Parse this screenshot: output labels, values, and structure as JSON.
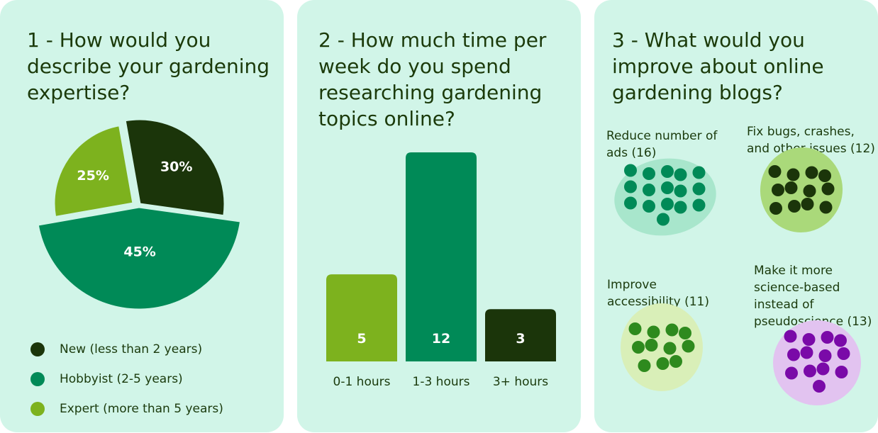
{
  "colors": {
    "card_bg": "#d1f5e8",
    "dark_green": "#1b350a",
    "mid_green": "#008a57",
    "light_green": "#7db21e",
    "purple": "#7a0aa8"
  },
  "cards": [
    {
      "title": "1 - How would you describe your gardening expertise?"
    },
    {
      "title": "2 - How much time per week do you spend researching gardening topics online?"
    },
    {
      "title": "3 - What would you improve about online gardening blogs?"
    }
  ],
  "chart_data": [
    {
      "type": "pie",
      "title": "1 - How would you describe your gardening expertise?",
      "slices": [
        {
          "name": "New (less than 2 years)",
          "value": 30,
          "label": "30%",
          "color": "#1b350a"
        },
        {
          "name": "Hobbyist (2-5 years)",
          "value": 45,
          "label": "45%",
          "color": "#008a57"
        },
        {
          "name": "Expert (more than 5 years)",
          "value": 25,
          "label": "25%",
          "color": "#7db21e"
        }
      ],
      "legend": [
        "New (less than 2 years)",
        "Hobbyist (2-5 years)",
        "Expert (more than 5 years)"
      ],
      "legend_position": "bottom"
    },
    {
      "type": "bar",
      "title": "2 - How much time per week do you spend researching gardening topics online?",
      "categories": [
        "0-1 hours",
        "1-3 hours",
        "3+ hours"
      ],
      "values": [
        5,
        12,
        3
      ],
      "colors": [
        "#7db21e",
        "#008a57",
        "#1b350a"
      ]
    },
    {
      "type": "scatter",
      "title": "3 - What would you improve about online gardening blogs?",
      "groups": [
        {
          "label": "Reduce number of ads (16)",
          "count": 16,
          "color": "#008a57",
          "blob": "#a8e6cc"
        },
        {
          "label": "Fix bugs, crashes, and other issues (12)",
          "count": 12,
          "color": "#1b350a",
          "blob": "#aad97a"
        },
        {
          "label": "Improve accessibility (11)",
          "count": 11,
          "color": "#2e8a1e",
          "blob": "#d9efb8"
        },
        {
          "label": "Make it more science-based instead of pseudoscience (13)",
          "count": 13,
          "color": "#7a0aa8",
          "blob": "#e2c3f0"
        }
      ]
    }
  ]
}
